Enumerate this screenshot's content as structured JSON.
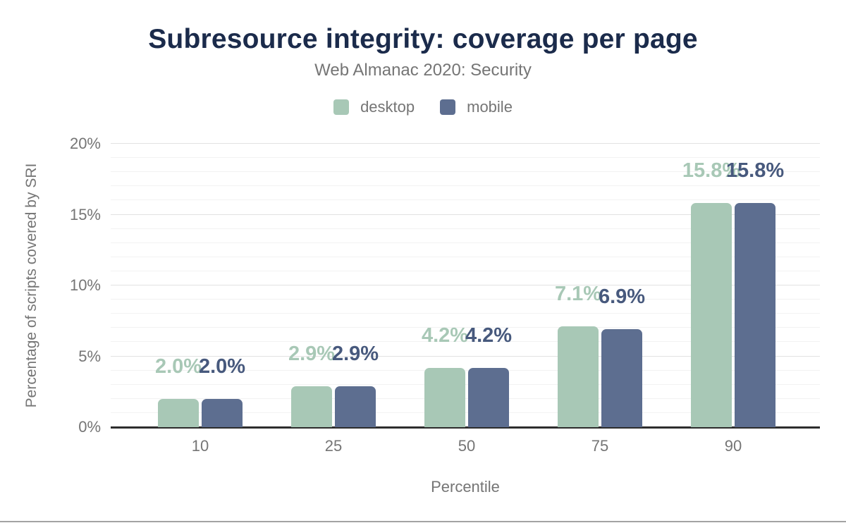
{
  "header": {
    "title": "Subresource integrity: coverage per page",
    "subtitle": "Web Almanac 2020: Security"
  },
  "legend": {
    "position": "top",
    "items": [
      {
        "label": "desktop",
        "color": "#a8c8b6"
      },
      {
        "label": "mobile",
        "color": "#5d6e90"
      }
    ]
  },
  "chart_data": {
    "type": "bar",
    "title": "Subresource integrity: coverage per page",
    "subtitle": "Web Almanac 2020: Security",
    "xlabel": "Percentile",
    "ylabel": "Percentage of scripts covered by SRI",
    "categories": [
      "10",
      "25",
      "50",
      "75",
      "90"
    ],
    "series": [
      {
        "name": "desktop",
        "color": "#a8c8b6",
        "label_color": "#a8c8b6",
        "values": [
          2.0,
          2.9,
          4.2,
          7.1,
          15.8
        ],
        "labels": [
          "2.0%",
          "2.9%",
          "4.2%",
          "7.1%",
          "15.8%"
        ]
      },
      {
        "name": "mobile",
        "color": "#5d6e90",
        "label_color": "#47597d",
        "values": [
          2.0,
          2.9,
          4.2,
          6.9,
          15.8
        ],
        "labels": [
          "2.0%",
          "2.9%",
          "4.2%",
          "6.9%",
          "15.8%"
        ]
      }
    ],
    "ylim": [
      0,
      20
    ],
    "y_ticks": [
      {
        "value": 0,
        "label": "0%"
      },
      {
        "value": 5,
        "label": "5%"
      },
      {
        "value": 10,
        "label": "10%"
      },
      {
        "value": 15,
        "label": "15%"
      },
      {
        "value": 20,
        "label": "20%"
      }
    ],
    "grid": {
      "minor_step": 1,
      "major_step": 5,
      "orientation": "horizontal"
    },
    "legend_position": "top"
  },
  "colors": {
    "title": "#1b2b4b",
    "muted_text": "#757575",
    "axis_line": "#2d2d2d",
    "grid_minor": "#f2f2f2",
    "grid_major": "#e2e2e2",
    "bottom_edge": "#a3a3a3"
  }
}
